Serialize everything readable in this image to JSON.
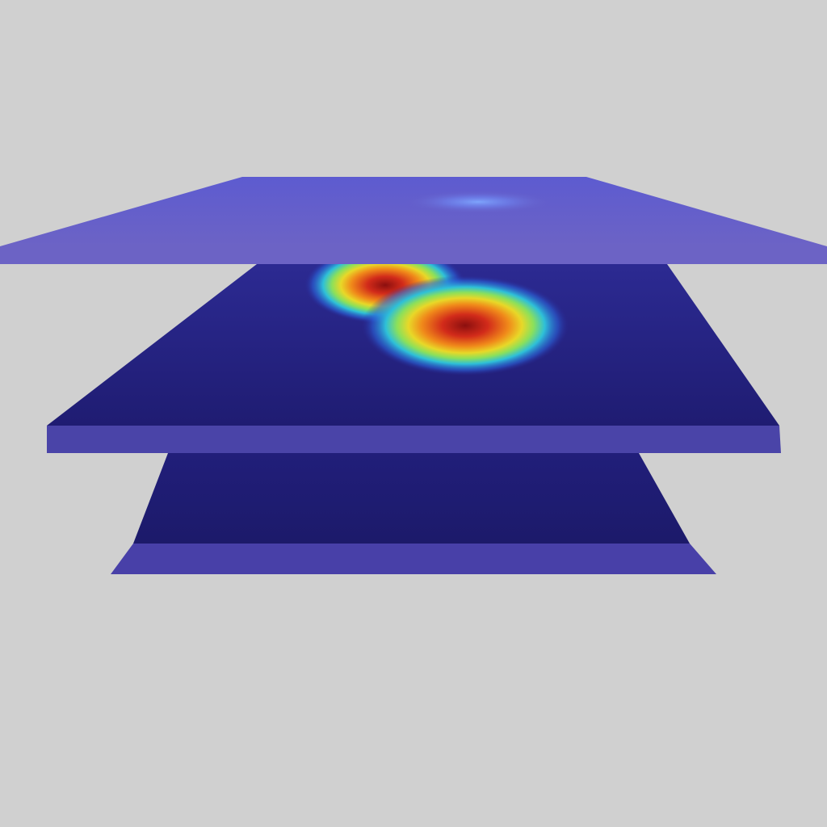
{
  "scene": {
    "background": "#d0d0d0",
    "layer_count": 3,
    "layers": [
      {
        "name": "top",
        "surface_color": "#6a62c6",
        "edge_color": "#6c63c5",
        "hotspots": [
          {
            "intensity": 0.35
          }
        ]
      },
      {
        "name": "middle",
        "surface_color": "#221f7e",
        "edge_color": "#4a44a8",
        "hotspots": [
          {
            "intensity": 1.0
          },
          {
            "intensity": 1.0
          }
        ]
      },
      {
        "name": "bottom",
        "surface_color": "#1e1b70",
        "edge_color": "#4840a8",
        "hotspots": []
      }
    ],
    "colormap": [
      "#8b0f0f",
      "#d22b1a",
      "#f08a1a",
      "#e8d828",
      "#8ce05a",
      "#2ec0d8",
      "#2a62d8",
      "#2a2a9a"
    ]
  }
}
